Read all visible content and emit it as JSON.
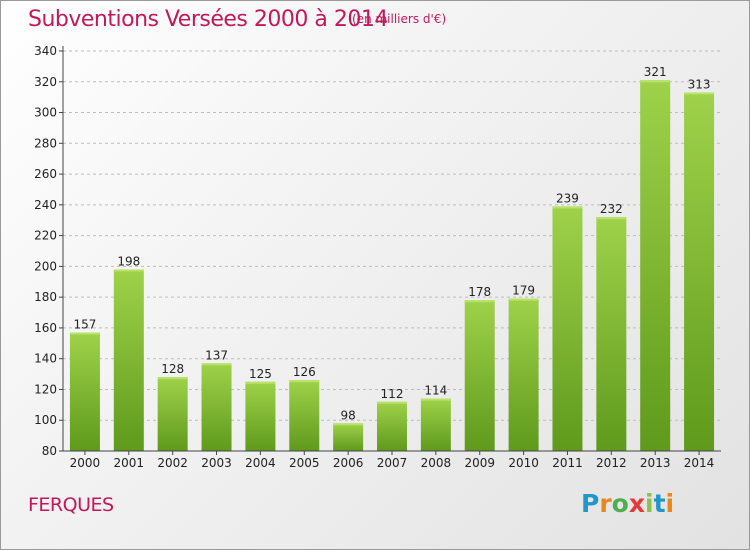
{
  "title": "Subventions Versées 2000 à 2014",
  "subtitle": "(en milliers d'€)",
  "place": "FERQUES",
  "logo": {
    "letters": [
      "P",
      "r",
      "o",
      "x",
      "i",
      "t",
      "i"
    ],
    "colors": [
      "#2196c9",
      "#e8871e",
      "#4caf50",
      "#e53935",
      "#8bc34a",
      "#2196c9",
      "#e8871e"
    ]
  },
  "colors": {
    "bar": "#8cc43c",
    "bar_dark": "#5f9a1c",
    "title": "#c2185b"
  },
  "chart_data": {
    "type": "bar",
    "categories": [
      "2000",
      "2001",
      "2002",
      "2003",
      "2004",
      "2005",
      "2006",
      "2007",
      "2008",
      "2009",
      "2010",
      "2011",
      "2012",
      "2013",
      "2014"
    ],
    "values": [
      157,
      198,
      128,
      137,
      125,
      126,
      98,
      112,
      114,
      178,
      179,
      239,
      232,
      321,
      313
    ],
    "ylim": [
      80,
      340
    ],
    "yticks": [
      80,
      100,
      120,
      140,
      160,
      180,
      200,
      220,
      240,
      260,
      280,
      300,
      320,
      340
    ],
    "grid": true
  }
}
